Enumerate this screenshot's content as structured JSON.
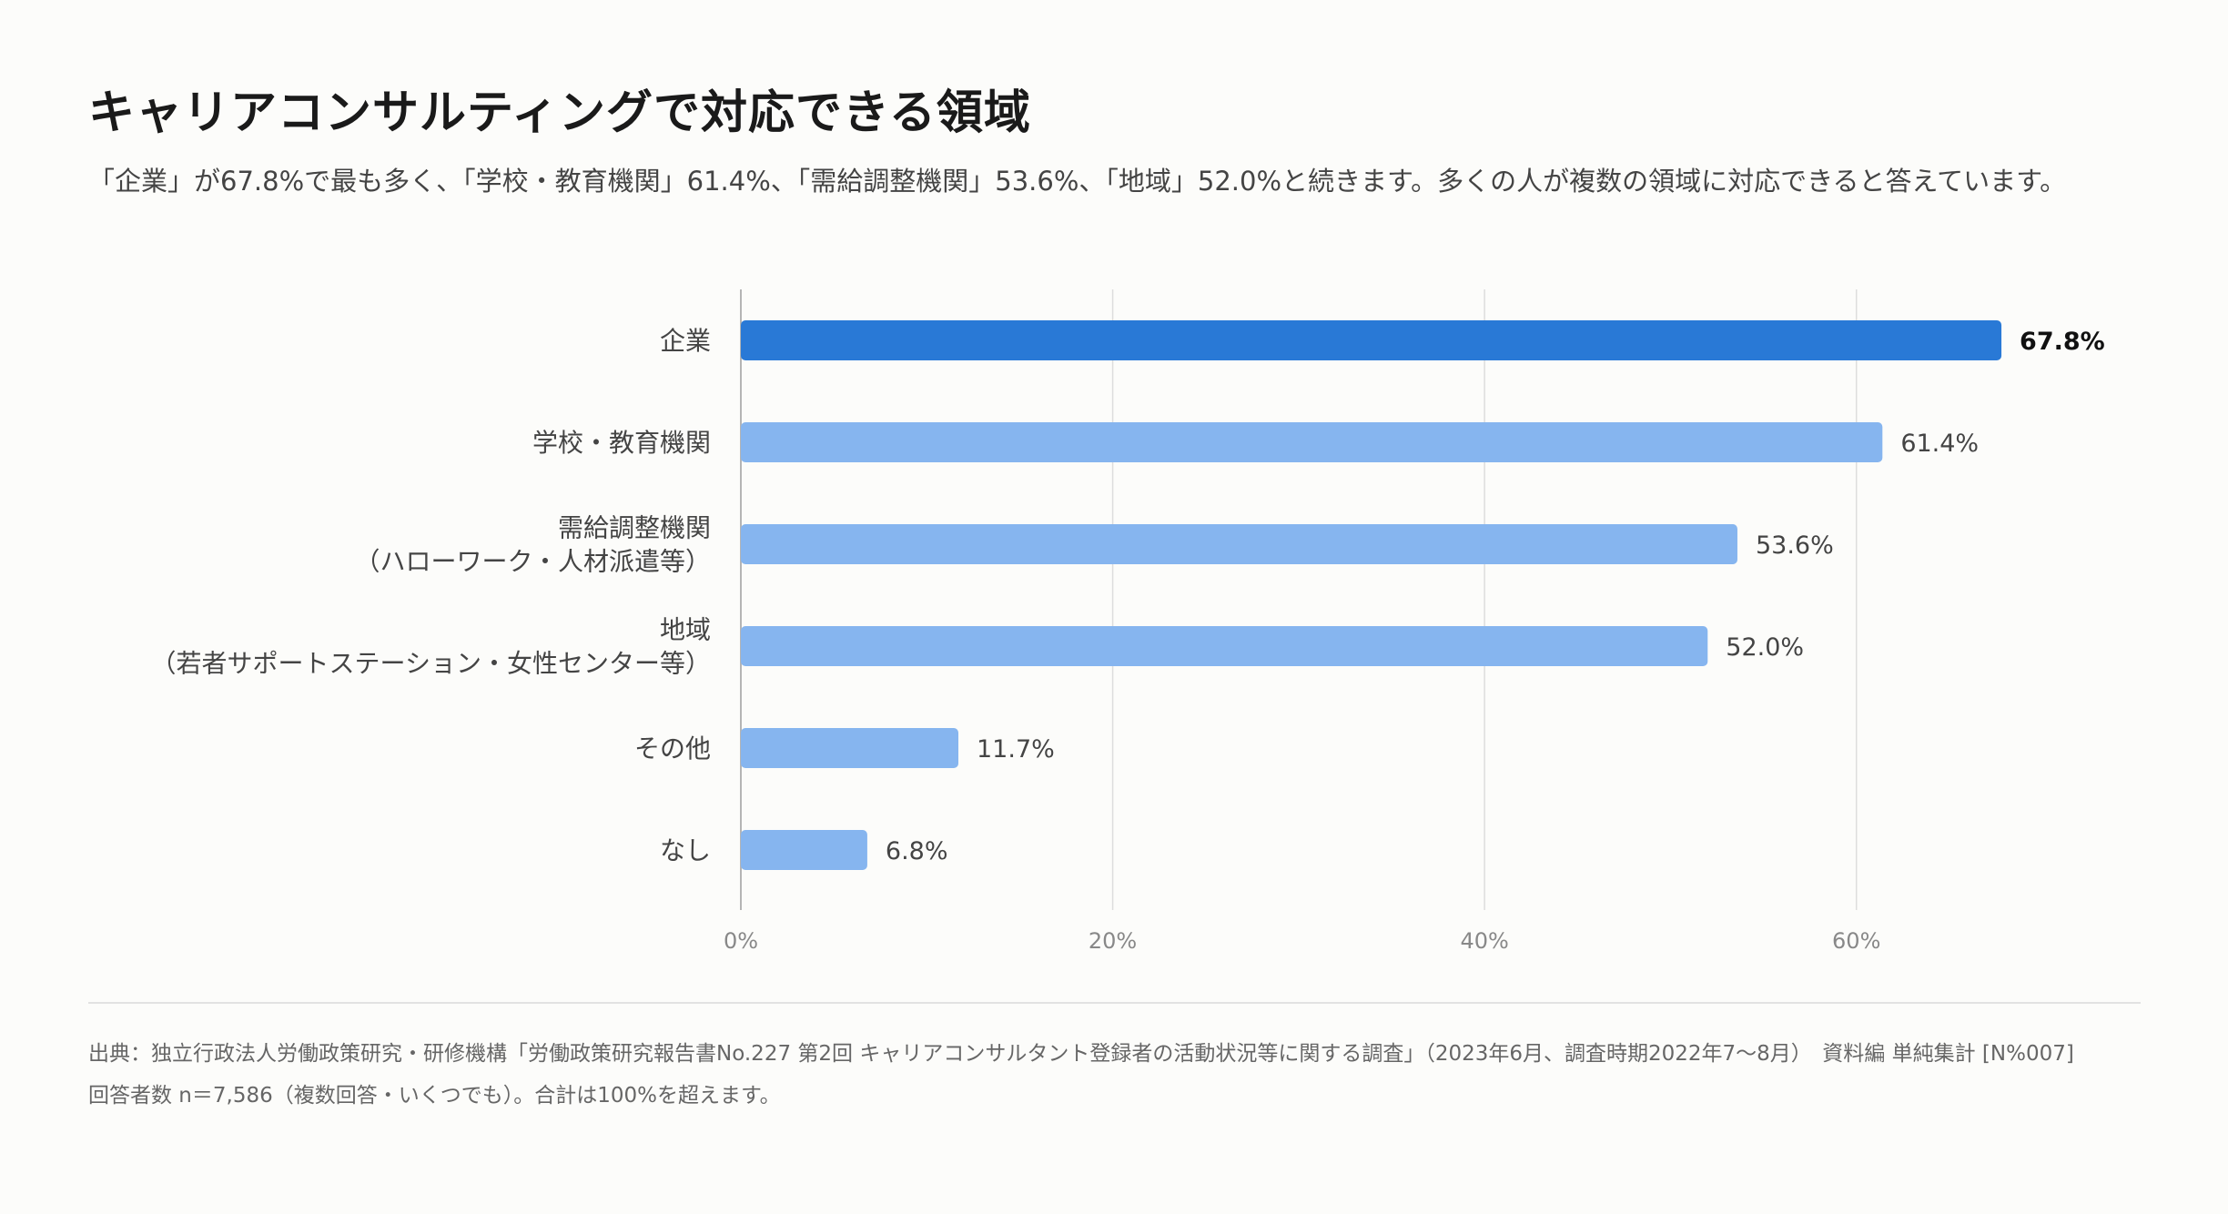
{
  "title": "キャリアコンサルティングで対応できる領域",
  "subtitle": "「企業」が67.8%で最も多く、「学校・教育機関」61.4%、「需給調整機関」53.6%、「地域」52.0%と続きます。多くの人が複数の領域に対応できると答えています。",
  "chart_data": {
    "type": "bar",
    "orientation": "horizontal",
    "categories": [
      [
        "企業"
      ],
      [
        "学校・教育機関"
      ],
      [
        "需給調整機関",
        "（ハローワーク・人材派遣等）"
      ],
      [
        "地域",
        "（若者サポートステーション・女性センター等）"
      ],
      [
        "その他"
      ],
      [
        "なし"
      ]
    ],
    "values": [
      67.8,
      61.4,
      53.6,
      52.0,
      11.7,
      6.8
    ],
    "value_labels": [
      "67.8%",
      "61.4%",
      "53.6%",
      "52.0%",
      "11.7%",
      "6.8%"
    ],
    "xlim": [
      0,
      70
    ],
    "xticks": [
      0,
      20,
      40,
      60
    ],
    "xtick_labels": [
      "0%",
      "20%",
      "40%",
      "60%"
    ],
    "grid": true,
    "highlight_index": 0,
    "colors": {
      "highlight": "#2979d6",
      "bar": "#86b5ef",
      "grid": "#dddddd",
      "axis": "#b5b5b5",
      "label": "#444444",
      "tick": "#888888"
    }
  },
  "footer": {
    "source": "出典：独立行政法人労働政策研究・研修機構「労働政策研究報告書No.227 第2回 キャリアコンサルタント登録者の活動状況等に関する調査」（2023年6月、調査時期2022年7〜8月）　資料編 単純集計 [N%007]",
    "note": "回答者数 n＝7,586（複数回答・いくつでも）。合計は100%を超えます。"
  }
}
